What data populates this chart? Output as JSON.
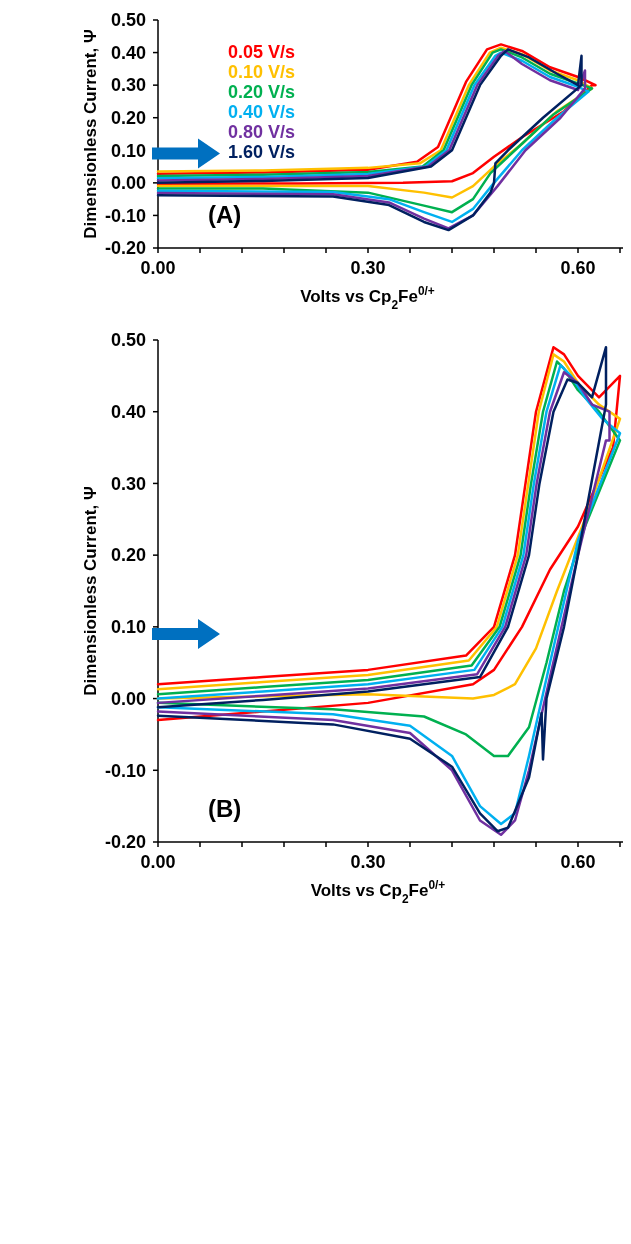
{
  "chart_data": [
    {
      "type": "line",
      "xlabel": "Volts vs Cp$_{2}$Fe$^{0/+}$",
      "ylabel": "Dimensionless Current, Ψ",
      "annotations": [
        "(A)"
      ],
      "legend": "top left",
      "xlim": [
        0,
        0.67
      ],
      "ylim": [
        -0.2,
        0.5
      ],
      "xticks": [
        {
          "value": 0,
          "label": "0.00"
        },
        {
          "value": 0.06,
          "label": null
        },
        {
          "value": 0.12,
          "label": null
        },
        {
          "value": 0.18,
          "label": null
        },
        {
          "value": 0.24,
          "label": null
        },
        {
          "value": 0.3,
          "label": "0.30"
        },
        {
          "value": 0.36,
          "label": null
        },
        {
          "value": 0.42,
          "label": null
        },
        {
          "value": 0.48,
          "label": null
        },
        {
          "value": 0.54,
          "label": null
        },
        {
          "value": 0.6,
          "label": "0.60"
        },
        {
          "value": 0.66,
          "label": null
        }
      ],
      "yticks": [
        {
          "value": -0.2,
          "label": "-0.20"
        },
        {
          "value": -0.1,
          "label": "-0.10"
        },
        {
          "value": 0,
          "label": "0.00"
        },
        {
          "value": 0.1,
          "label": "0.10"
        },
        {
          "value": 0.2,
          "label": "0.20"
        },
        {
          "value": 0.3,
          "label": "0.30"
        },
        {
          "value": 0.4,
          "label": "0.40"
        },
        {
          "value": 0.5,
          "label": "0.50"
        }
      ],
      "series": [
        {
          "name": "0.05 V/s",
          "color": "#ff0000",
          "x": [
            0,
            0.15,
            0.3,
            0.37,
            0.4,
            0.42,
            0.44,
            0.47,
            0.49,
            0.52,
            0.56,
            0.6,
            0.625,
            0.62,
            0.58,
            0.52,
            0.48,
            0.45,
            0.42,
            0.35,
            0.2,
            0
          ],
          "values": [
            0.028,
            0.032,
            0.04,
            0.065,
            0.11,
            0.21,
            0.31,
            0.41,
            0.425,
            0.405,
            0.355,
            0.325,
            0.3,
            0.3,
            0.22,
            0.14,
            0.08,
            0.03,
            0.005,
            0,
            -0.002,
            -0.003
          ]
        },
        {
          "name": "0.10 V/s",
          "color": "#ffc000",
          "x": [
            0,
            0.15,
            0.3,
            0.374,
            0.404,
            0.424,
            0.444,
            0.474,
            0.49,
            0.52,
            0.56,
            0.6,
            0.62,
            0.62,
            0.57,
            0.52,
            0.48,
            0.45,
            0.42,
            0.38,
            0.3,
            0
          ],
          "values": [
            0.035,
            0.038,
            0.046,
            0.06,
            0.1,
            0.2,
            0.3,
            0.4,
            0.415,
            0.395,
            0.345,
            0.315,
            0.29,
            0.29,
            0.22,
            0.12,
            0.05,
            -0.01,
            -0.045,
            -0.03,
            -0.01,
            -0.01
          ]
        },
        {
          "name": "0.20 V/s",
          "color": "#00b050",
          "x": [
            0,
            0.15,
            0.3,
            0.378,
            0.408,
            0.428,
            0.448,
            0.478,
            0.49,
            0.52,
            0.56,
            0.6,
            0.62,
            0.62,
            0.565,
            0.515,
            0.475,
            0.45,
            0.42,
            0.38,
            0.3,
            0.15,
            0
          ],
          "values": [
            0.021,
            0.025,
            0.033,
            0.05,
            0.1,
            0.2,
            0.3,
            0.4,
            0.41,
            0.385,
            0.335,
            0.305,
            0.29,
            0.29,
            0.21,
            0.11,
            0.03,
            -0.05,
            -0.09,
            -0.07,
            -0.03,
            -0.017,
            -0.017
          ]
        },
        {
          "name": "0.40 V/s",
          "color": "#00b0f0",
          "x": [
            0,
            0.15,
            0.3,
            0.382,
            0.412,
            0.432,
            0.452,
            0.482,
            0.49,
            0.52,
            0.56,
            0.6,
            0.615,
            0.615,
            0.57,
            0.52,
            0.48,
            0.45,
            0.42,
            0.38,
            0.33,
            0.25,
            0
          ],
          "values": [
            0.014,
            0.018,
            0.027,
            0.05,
            0.1,
            0.2,
            0.3,
            0.39,
            0.4,
            0.375,
            0.325,
            0.295,
            0.28,
            0.28,
            0.2,
            0.1,
            0.0,
            -0.08,
            -0.12,
            -0.09,
            -0.05,
            -0.028,
            -0.024
          ]
        },
        {
          "name": "0.80 V/s",
          "color": "#7030a0",
          "x": [
            0,
            0.15,
            0.3,
            0.386,
            0.416,
            0.436,
            0.456,
            0.486,
            0.495,
            0.52,
            0.56,
            0.6,
            0.61,
            0.61,
            0.575,
            0.525,
            0.485,
            0.45,
            0.415,
            0.38,
            0.33,
            0.25,
            0
          ],
          "values": [
            0.007,
            0.012,
            0.021,
            0.05,
            0.1,
            0.2,
            0.3,
            0.39,
            0.405,
            0.365,
            0.315,
            0.285,
            0.345,
            0.29,
            0.2,
            0.1,
            -0.01,
            -0.1,
            -0.14,
            -0.11,
            -0.06,
            -0.035,
            -0.031
          ]
        },
        {
          "name": "1.60 V/s",
          "color": "#002060",
          "x": [
            0,
            0.15,
            0.3,
            0.39,
            0.42,
            0.44,
            0.46,
            0.49,
            0.5,
            0.53,
            0.57,
            0.6,
            0.605,
            0.605,
            0.55,
            0.5,
            0.482,
            0.48,
            0.475,
            0.45,
            0.415,
            0.38,
            0.33,
            0.25,
            0
          ],
          "values": [
            0,
            0.006,
            0.015,
            0.05,
            0.1,
            0.2,
            0.3,
            0.39,
            0.41,
            0.385,
            0.335,
            0.3,
            0.39,
            0.3,
            0.2,
            0.1,
            0.06,
            0.0,
            -0.03,
            -0.1,
            -0.145,
            -0.12,
            -0.068,
            -0.042,
            -0.038
          ]
        }
      ]
    },
    {
      "type": "line",
      "xlabel": "Volts vs Cp$_{2}$Fe$^{0/+}$",
      "ylabel": "Dimensionless Current, Ψ",
      "annotations": [
        "(B)"
      ],
      "xlim": [
        0,
        0.7
      ],
      "ylim": [
        -0.2,
        0.5
      ],
      "xticks": [
        {
          "value": 0,
          "label": "0.00"
        },
        {
          "value": 0.06,
          "label": null
        },
        {
          "value": 0.12,
          "label": null
        },
        {
          "value": 0.18,
          "label": null
        },
        {
          "value": 0.24,
          "label": null
        },
        {
          "value": 0.3,
          "label": "0.30"
        },
        {
          "value": 0.36,
          "label": null
        },
        {
          "value": 0.42,
          "label": null
        },
        {
          "value": 0.48,
          "label": null
        },
        {
          "value": 0.54,
          "label": null
        },
        {
          "value": 0.6,
          "label": "0.60"
        },
        {
          "value": 0.66,
          "label": null
        }
      ],
      "yticks": [
        {
          "value": -0.2,
          "label": "-0.20"
        },
        {
          "value": -0.1,
          "label": "-0.10"
        },
        {
          "value": 0,
          "label": "0.00"
        },
        {
          "value": 0.1,
          "label": "0.10"
        },
        {
          "value": 0.2,
          "label": "0.20"
        },
        {
          "value": 0.3,
          "label": "0.30"
        },
        {
          "value": 0.4,
          "label": "0.40"
        },
        {
          "value": 0.5,
          "label": "0.50"
        }
      ],
      "series": [
        {
          "color": "#ff0000",
          "x": [
            0,
            0.15,
            0.3,
            0.44,
            0.48,
            0.51,
            0.525,
            0.54,
            0.565,
            0.58,
            0.6,
            0.63,
            0.66,
            0.66,
            0.65,
            0.6,
            0.56,
            0.52,
            0.48,
            0.45,
            0.3,
            0
          ],
          "values": [
            0.02,
            0.03,
            0.04,
            0.06,
            0.1,
            0.2,
            0.3,
            0.4,
            0.49,
            0.48,
            0.45,
            0.42,
            0.45,
            0.45,
            0.35,
            0.24,
            0.18,
            0.1,
            0.04,
            0.02,
            -0.006,
            -0.03
          ]
        },
        {
          "color": "#ffc000",
          "x": [
            0,
            0.15,
            0.3,
            0.444,
            0.484,
            0.514,
            0.529,
            0.544,
            0.565,
            0.58,
            0.6,
            0.63,
            0.66,
            0.66,
            0.61,
            0.57,
            0.54,
            0.51,
            0.48,
            0.45,
            0.3,
            0
          ],
          "values": [
            0.013,
            0.023,
            0.033,
            0.053,
            0.1,
            0.2,
            0.3,
            0.4,
            0.48,
            0.47,
            0.44,
            0.41,
            0.39,
            0.39,
            0.25,
            0.15,
            0.07,
            0.02,
            0.005,
            0.0,
            0.006,
            0.0
          ]
        },
        {
          "color": "#00b050",
          "x": [
            0,
            0.15,
            0.3,
            0.448,
            0.488,
            0.518,
            0.533,
            0.55,
            0.57,
            0.58,
            0.6,
            0.63,
            0.66,
            0.66,
            0.61,
            0.58,
            0.555,
            0.53,
            0.5,
            0.48,
            0.44,
            0.38,
            0.25,
            0
          ],
          "values": [
            0.006,
            0.016,
            0.026,
            0.046,
            0.1,
            0.2,
            0.3,
            0.4,
            0.47,
            0.46,
            0.43,
            0.4,
            0.36,
            0.36,
            0.24,
            0.15,
            0.05,
            -0.04,
            -0.08,
            -0.08,
            -0.05,
            -0.025,
            -0.015,
            -0.006
          ]
        },
        {
          "color": "#00b0f0",
          "x": [
            0,
            0.15,
            0.3,
            0.452,
            0.492,
            0.522,
            0.537,
            0.555,
            0.575,
            0.59,
            0.61,
            0.635,
            0.66,
            0.66,
            0.6,
            0.56,
            0.53,
            0.51,
            0.49,
            0.46,
            0.42,
            0.36,
            0.25,
            0
          ],
          "values": [
            0,
            0.01,
            0.02,
            0.04,
            0.1,
            0.2,
            0.3,
            0.4,
            0.465,
            0.45,
            0.42,
            0.39,
            0.37,
            0.37,
            0.22,
            0.05,
            -0.08,
            -0.16,
            -0.175,
            -0.15,
            -0.08,
            -0.038,
            -0.022,
            -0.012
          ]
        },
        {
          "color": "#7030a0",
          "x": [
            0,
            0.15,
            0.3,
            0.456,
            0.496,
            0.526,
            0.541,
            0.56,
            0.58,
            0.6,
            0.62,
            0.645,
            0.645,
            0.64,
            0.6,
            0.56,
            0.53,
            0.51,
            0.49,
            0.46,
            0.42,
            0.36,
            0.25,
            0
          ],
          "values": [
            -0.006,
            0.004,
            0.014,
            0.034,
            0.1,
            0.2,
            0.3,
            0.4,
            0.455,
            0.44,
            0.41,
            0.4,
            0.36,
            0.36,
            0.2,
            0.03,
            -0.1,
            -0.17,
            -0.19,
            -0.17,
            -0.1,
            -0.048,
            -0.03,
            -0.018
          ]
        },
        {
          "color": "#002060",
          "x": [
            0,
            0.15,
            0.3,
            0.46,
            0.5,
            0.53,
            0.545,
            0.565,
            0.585,
            0.6,
            0.62,
            0.64,
            0.64,
            0.6,
            0.58,
            0.555,
            0.55,
            0.548,
            0.53,
            0.5,
            0.485,
            0.46,
            0.42,
            0.36,
            0.25,
            0
          ],
          "values": [
            -0.012,
            -0.002,
            0.01,
            0.03,
            0.1,
            0.2,
            0.3,
            0.4,
            0.445,
            0.44,
            0.42,
            0.49,
            0.41,
            0.2,
            0.1,
            0.0,
            -0.085,
            -0.02,
            -0.11,
            -0.18,
            -0.185,
            -0.16,
            -0.095,
            -0.056,
            -0.036,
            -0.024
          ]
        }
      ]
    }
  ]
}
